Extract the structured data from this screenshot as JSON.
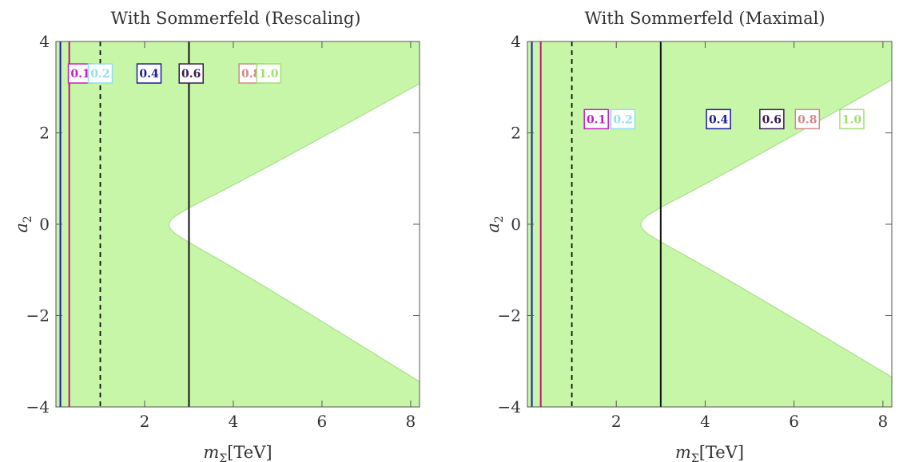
{
  "chart_data": [
    {
      "type": "contour",
      "title": "With Sommerfeld (Rescaling)",
      "xlabel": "m",
      "xlabel_sub": "Σ",
      "xlabel_unit": "[TeV]",
      "ylabel": "a",
      "ylabel_sub": "2",
      "xlim": [
        0,
        8.2
      ],
      "ylim": [
        -4,
        4
      ],
      "xticks": [
        2,
        4,
        6,
        8
      ],
      "yticks": [
        4,
        2,
        0,
        -2,
        -4
      ],
      "xtick_labels": [
        "2",
        "4",
        "6",
        "8"
      ],
      "ytick_labels": [
        "4",
        "2",
        "0",
        "−2",
        "−4"
      ],
      "vertical_lines": [
        {
          "x": 0.1,
          "color": "#1a1ab0",
          "style": "solid"
        },
        {
          "x": 0.3,
          "color": "#c0147a",
          "style": "solid"
        },
        {
          "x": 1.0,
          "color": "#111111",
          "style": "dashed"
        },
        {
          "x": 3.0,
          "color": "#111111",
          "style": "solid"
        }
      ],
      "contours": [
        {
          "label": "0.1",
          "color": "#ee8ef0",
          "line": "#a24fc0",
          "label_color": "#c020c0",
          "apex_x": 0.3,
          "width": 7.0,
          "a": 3.2,
          "skew": 0.1
        },
        {
          "label": "0.2",
          "color": "#bcf0f6",
          "line": "#9ad8e0",
          "label_color": "#90e0ea",
          "apex_x": 0.65,
          "width": 7.0,
          "a": 2.2,
          "skew": 0.1
        },
        {
          "label": "0.4",
          "color": "#a8a6f2",
          "line": "#3f3aa0",
          "label_color": "#1a1a9a",
          "apex_x": 1.1,
          "width": 7.0,
          "a": 1.2,
          "skew": 0.1
        },
        {
          "label": "0.6",
          "color": "#e9a0a4",
          "line": "#7a3b86",
          "label_color": "#3a1a55",
          "apex_x": 1.55,
          "width": 7.0,
          "a": 0.8,
          "skew": 0.1
        },
        {
          "label": "0.8",
          "color": "#f4d6d4",
          "line": "#c89a98",
          "label_color": "#d08a88",
          "apex_x": 2.05,
          "width": 7.0,
          "a": 0.55,
          "skew": 0.1
        },
        {
          "label": "1.0",
          "color": "#c8f6a8",
          "line": "#a6e08a",
          "label_color": "#a0e070",
          "apex_x": 2.55,
          "width": 7.0,
          "a": 0.4,
          "skew": 0.1
        }
      ],
      "contour_labels_y": 3.3,
      "contour_labels_x": [
        0.55,
        1.0,
        2.1,
        3.05,
        4.4,
        4.8
      ]
    },
    {
      "type": "contour",
      "title": "With Sommerfeld (Maximal)",
      "xlabel": "m",
      "xlabel_sub": "Σ",
      "xlabel_unit": "[TeV]",
      "ylabel": "a",
      "ylabel_sub": "2",
      "xlim": [
        0,
        8.2
      ],
      "ylim": [
        -4,
        4
      ],
      "xticks": [
        2,
        4,
        6,
        8
      ],
      "yticks": [
        4,
        2,
        0,
        -2,
        -4
      ],
      "xtick_labels": [
        "2",
        "4",
        "6",
        "8"
      ],
      "ytick_labels": [
        "4",
        "2",
        "0",
        "−2",
        "−4"
      ],
      "vertical_lines": [
        {
          "x": 0.1,
          "color": "#1a1ab0",
          "style": "solid"
        },
        {
          "x": 0.3,
          "color": "#c0147a",
          "style": "solid"
        },
        {
          "x": 1.0,
          "color": "#111111",
          "style": "dashed"
        },
        {
          "x": 3.0,
          "color": "#111111",
          "style": "solid"
        }
      ],
      "contours": [
        {
          "label": "0.1",
          "color": "#ee8ef0",
          "line": "#a24fc0",
          "label_color": "#c020c0",
          "apex_x": 0.3,
          "width": 7.0,
          "a": 3.2,
          "skew": 0.05
        },
        {
          "label": "0.2",
          "color": "#bcf0f6",
          "line": "#9ad8e0",
          "label_color": "#90e0ea",
          "apex_x": 0.65,
          "width": 7.0,
          "a": 2.2,
          "skew": 0.05
        },
        {
          "label": "0.4",
          "color": "#a8a6f2",
          "line": "#3f3aa0",
          "label_color": "#1a1a9a",
          "apex_x": 1.1,
          "width": 7.0,
          "a": 1.2,
          "skew": 0.05
        },
        {
          "label": "0.6",
          "color": "#e9a0a4",
          "line": "#7a3b86",
          "label_color": "#3a1a55",
          "apex_x": 1.55,
          "width": 7.0,
          "a": 0.8,
          "skew": 0.05
        },
        {
          "label": "0.8",
          "color": "#f4d6d4",
          "line": "#c89a98",
          "label_color": "#d08a88",
          "apex_x": 2.05,
          "width": 7.0,
          "a": 0.55,
          "skew": 0.05
        },
        {
          "label": "1.0",
          "color": "#c8f6a8",
          "line": "#a6e08a",
          "label_color": "#a0e070",
          "apex_x": 2.55,
          "width": 7.0,
          "a": 0.4,
          "skew": 0.05
        }
      ],
      "contour_labels_y": 2.3,
      "contour_labels_x": [
        1.55,
        2.15,
        4.3,
        5.5,
        6.3,
        7.3
      ]
    }
  ]
}
